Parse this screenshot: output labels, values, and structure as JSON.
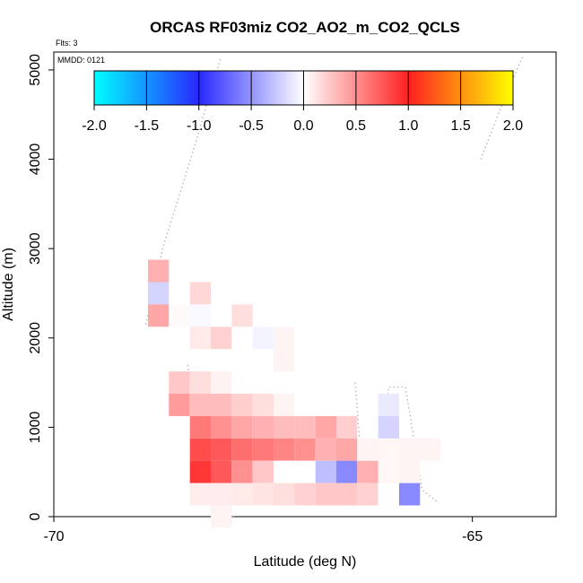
{
  "chart_data": {
    "type": "heatmap",
    "title": "ORCAS RF03miz CO2_AO2_m_CO2_QCLS",
    "flights_label": "Flts: 3",
    "date_label": "MMDD: 0121",
    "xlabel": "Latitude (deg N)",
    "ylabel": "Altitude (m)",
    "xlim": [
      -70,
      -64
    ],
    "ylim": [
      0,
      5200
    ],
    "xticks": [
      -70,
      -65
    ],
    "yticks": [
      0,
      1000,
      2000,
      3000,
      4000,
      5000
    ],
    "colorbar": {
      "range": [
        -2.0,
        2.0
      ],
      "ticks": [
        "-2.0",
        "-1.5",
        "-1.0",
        "-0.5",
        "0.0",
        "0.5",
        "1.0",
        "1.5",
        "2.0"
      ],
      "stops": [
        {
          "v": -2.0,
          "c": "#00ffff"
        },
        {
          "v": -1.0,
          "c": "#2828ff"
        },
        {
          "v": 0.0,
          "c": "#ffffff"
        },
        {
          "v": 1.0,
          "c": "#ff2020"
        },
        {
          "v": 2.0,
          "c": "#ffff00"
        }
      ]
    },
    "cell_size": {
      "dlat": 0.25,
      "dalt": 250
    },
    "cells": [
      {
        "lat": -68.75,
        "alt": 2750,
        "v": 0.35
      },
      {
        "lat": -68.75,
        "alt": 2500,
        "v": -0.2
      },
      {
        "lat": -68.75,
        "alt": 2250,
        "v": 0.4
      },
      {
        "lat": -68.5,
        "alt": 2250,
        "v": 0.02
      },
      {
        "lat": -68.25,
        "alt": 2500,
        "v": 0.18
      },
      {
        "lat": -68.25,
        "alt": 2250,
        "v": -0.03
      },
      {
        "lat": -68.25,
        "alt": 2000,
        "v": 0.1
      },
      {
        "lat": -68.0,
        "alt": 2000,
        "v": 0.2
      },
      {
        "lat": -67.75,
        "alt": 2250,
        "v": 0.15
      },
      {
        "lat": -67.5,
        "alt": 2000,
        "v": -0.05
      },
      {
        "lat": -67.25,
        "alt": 2000,
        "v": 0.05
      },
      {
        "lat": -67.25,
        "alt": 1750,
        "v": 0.05
      },
      {
        "lat": -68.5,
        "alt": 1500,
        "v": 0.25
      },
      {
        "lat": -68.5,
        "alt": 1250,
        "v": 0.45
      },
      {
        "lat": -68.25,
        "alt": 1500,
        "v": 0.15
      },
      {
        "lat": -68.25,
        "alt": 1250,
        "v": 0.3
      },
      {
        "lat": -68.0,
        "alt": 1500,
        "v": 0.06
      },
      {
        "lat": -68.0,
        "alt": 1250,
        "v": 0.3
      },
      {
        "lat": -67.75,
        "alt": 1250,
        "v": 0.22
      },
      {
        "lat": -67.5,
        "alt": 1250,
        "v": 0.15
      },
      {
        "lat": -67.25,
        "alt": 1250,
        "v": 0.05
      },
      {
        "lat": -68.25,
        "alt": 1000,
        "v": 0.6
      },
      {
        "lat": -68.0,
        "alt": 1000,
        "v": 0.5
      },
      {
        "lat": -67.75,
        "alt": 1000,
        "v": 0.4
      },
      {
        "lat": -67.5,
        "alt": 1000,
        "v": 0.35
      },
      {
        "lat": -67.25,
        "alt": 1000,
        "v": 0.3
      },
      {
        "lat": -67.0,
        "alt": 1000,
        "v": 0.3
      },
      {
        "lat": -66.75,
        "alt": 1000,
        "v": 0.4
      },
      {
        "lat": -66.5,
        "alt": 1000,
        "v": 0.22
      },
      {
        "lat": -68.25,
        "alt": 750,
        "v": 0.8
      },
      {
        "lat": -68.0,
        "alt": 750,
        "v": 0.75
      },
      {
        "lat": -67.75,
        "alt": 750,
        "v": 0.65
      },
      {
        "lat": -67.5,
        "alt": 750,
        "v": 0.6
      },
      {
        "lat": -67.25,
        "alt": 750,
        "v": 0.55
      },
      {
        "lat": -67.0,
        "alt": 750,
        "v": 0.5
      },
      {
        "lat": -66.75,
        "alt": 750,
        "v": 0.35
      },
      {
        "lat": -66.5,
        "alt": 750,
        "v": 0.4
      },
      {
        "lat": -66.25,
        "alt": 750,
        "v": 0.05
      },
      {
        "lat": -66.0,
        "alt": 750,
        "v": 0.04
      },
      {
        "lat": -65.75,
        "alt": 750,
        "v": 0.05
      },
      {
        "lat": -65.5,
        "alt": 750,
        "v": 0.05
      },
      {
        "lat": -68.25,
        "alt": 500,
        "v": 0.9
      },
      {
        "lat": -68.0,
        "alt": 500,
        "v": 0.75
      },
      {
        "lat": -67.75,
        "alt": 500,
        "v": 0.5
      },
      {
        "lat": -67.5,
        "alt": 500,
        "v": 0.25
      },
      {
        "lat": -67.25,
        "alt": 500,
        "v": 0.0
      },
      {
        "lat": -67.0,
        "alt": 500,
        "v": 0.0
      },
      {
        "lat": -66.75,
        "alt": 500,
        "v": -0.3
      },
      {
        "lat": -66.5,
        "alt": 500,
        "v": -0.55
      },
      {
        "lat": -66.25,
        "alt": 500,
        "v": 0.35
      },
      {
        "lat": -66.0,
        "alt": 500,
        "v": 0.04
      },
      {
        "lat": -65.75,
        "alt": 500,
        "v": 0.05
      },
      {
        "lat": -68.25,
        "alt": 250,
        "v": 0.08
      },
      {
        "lat": -68.0,
        "alt": 250,
        "v": 0.08
      },
      {
        "lat": -67.75,
        "alt": 250,
        "v": 0.1
      },
      {
        "lat": -67.5,
        "alt": 250,
        "v": 0.12
      },
      {
        "lat": -67.25,
        "alt": 250,
        "v": 0.15
      },
      {
        "lat": -67.0,
        "alt": 250,
        "v": 0.2
      },
      {
        "lat": -66.75,
        "alt": 250,
        "v": 0.25
      },
      {
        "lat": -66.5,
        "alt": 250,
        "v": 0.25
      },
      {
        "lat": -66.25,
        "alt": 250,
        "v": 0.2
      },
      {
        "lat": -66.0,
        "alt": 1250,
        "v": -0.1
      },
      {
        "lat": -66.0,
        "alt": 1000,
        "v": -0.2
      },
      {
        "lat": -65.75,
        "alt": 250,
        "v": -0.55
      },
      {
        "lat": -68.0,
        "alt": 0,
        "v": 0.05
      }
    ],
    "track": [
      [
        -68.9,
        2150
      ],
      [
        -68.8,
        2600
      ],
      [
        -68.7,
        3000
      ],
      [
        -68.5,
        3600
      ],
      [
        -68.3,
        4200
      ],
      [
        -68.15,
        4700
      ],
      [
        -68.0,
        5150
      ],
      [
        -68.4,
        1700
      ],
      [
        -68.3,
        1000
      ],
      [
        -68.2,
        200
      ],
      [
        -68.0,
        150
      ],
      [
        -67.85,
        0
      ],
      [
        -66.4,
        1500
      ],
      [
        -66.3,
        300
      ],
      [
        -66.1,
        500
      ],
      [
        -66.0,
        1450
      ],
      [
        -65.8,
        1450
      ],
      [
        -65.6,
        300
      ],
      [
        -65.4,
        150
      ],
      [
        -64.9,
        4000
      ],
      [
        -64.65,
        4600
      ],
      [
        -64.4,
        5150
      ]
    ]
  }
}
